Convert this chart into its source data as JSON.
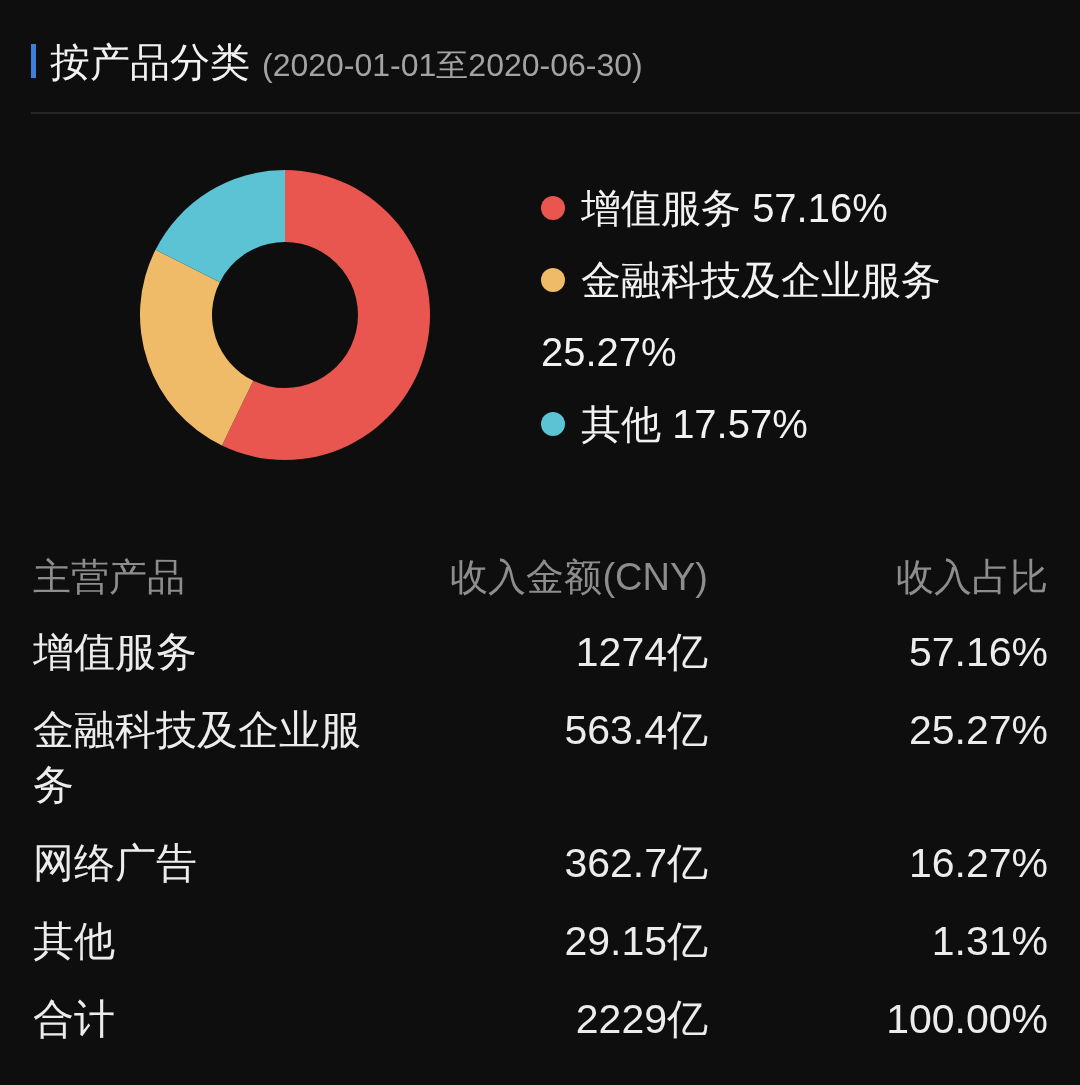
{
  "chart_data": [
    {
      "type": "donut",
      "title": "按产品分类",
      "subtitle": "(2020-01-01至2020-06-30)",
      "categories": [
        "增值服务",
        "金融科技及企业服务",
        "其他"
      ],
      "values": [
        57.16,
        25.27,
        17.57
      ],
      "colors": [
        "#e8564f",
        "#efbb68",
        "#5cc3d4"
      ],
      "value_labels": [
        "57.16%",
        "25.27%",
        "17.57%"
      ],
      "legend": "right"
    },
    {
      "type": "other",
      "xlabel": "主营产品",
      "categories": [
        "增值服务",
        "金融科技及企业服务",
        "网络广告",
        "其他",
        "合计"
      ],
      "series": [
        {
          "name": "收入金额(CNY)",
          "values": [
            1274,
            563.4,
            362.7,
            29.15,
            2229
          ],
          "value_labels": [
            "1274亿",
            "563.4亿",
            "362.7亿",
            "29.15亿",
            "2229亿"
          ]
        },
        {
          "name": "收入占比",
          "values": [
            57.16,
            25.27,
            16.27,
            1.31,
            100
          ],
          "value_labels": [
            "57.16%",
            "25.27%",
            "16.27%",
            "1.31%",
            "100.00%"
          ]
        }
      ]
    }
  ]
}
